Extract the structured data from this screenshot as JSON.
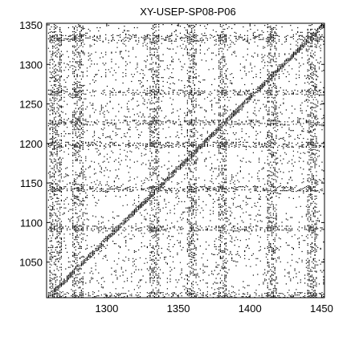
{
  "chart_data": {
    "type": "heatmap",
    "title": "XY-USEP-SP08-P06",
    "xlabel": "",
    "ylabel": "",
    "xlim": [
      1258,
      1452
    ],
    "ylim": [
      1005,
      1352
    ],
    "x_ticks": [
      1300,
      1350,
      1400,
      1450
    ],
    "y_ticks": [
      1050,
      1100,
      1150,
      1200,
      1250,
      1300,
      1350
    ],
    "x_tick_labels": [
      "1300",
      "1350",
      "1400",
      "1450"
    ],
    "y_tick_labels": [
      "1050",
      "1100",
      "1150",
      "1200",
      "1250",
      "1300",
      "1350"
    ],
    "grid": false,
    "colors": {
      "background": "#ffffff",
      "marks": "#000000"
    },
    "description_kind": "binary recurrence plot",
    "dense_vertical_bands_x": [
      [
        1260,
        1268
      ],
      [
        1276,
        1283
      ],
      [
        1330,
        1336
      ],
      [
        1356,
        1362
      ],
      [
        1378,
        1383
      ],
      [
        1412,
        1418
      ],
      [
        1440,
        1446
      ]
    ],
    "dense_horizontal_bands_y": [
      [
        1005,
        1012
      ],
      [
        1090,
        1096
      ],
      [
        1140,
        1146
      ],
      [
        1196,
        1202
      ],
      [
        1224,
        1230
      ],
      [
        1262,
        1268
      ],
      [
        1330,
        1338
      ]
    ]
  }
}
